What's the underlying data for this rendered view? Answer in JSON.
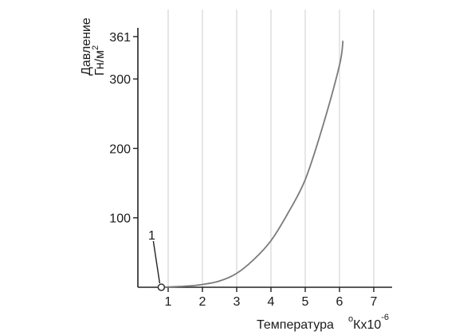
{
  "chart_data": {
    "type": "line",
    "xlabel_main": "Температура",
    "xlabel_unit": "°Кх10",
    "xlabel_unit_deg": "o",
    "xlabel_unit_body": "Кх10",
    "xlabel_exponent": "-6",
    "ylabel_line1": "Давление",
    "ylabel_line2_base": "Гн/м",
    "ylabel_line2_sup": "2",
    "xlim": [
      0,
      7.5
    ],
    "ylim": [
      0,
      375
    ],
    "x_ticks": [
      1,
      2,
      3,
      4,
      5,
      6,
      7
    ],
    "x_tick_labels": [
      "1",
      "2",
      "3",
      "4",
      "5",
      "6",
      "7"
    ],
    "y_ticks": [
      100,
      200,
      300,
      361
    ],
    "y_tick_labels": [
      "100",
      "200",
      "300",
      "361"
    ],
    "grid_x": true,
    "grid_y": false,
    "series": [
      {
        "color": "#7a7a7a",
        "x": [
          0.8,
          1.0,
          1.5,
          2.0,
          2.5,
          3.0,
          3.5,
          4.0,
          4.5,
          5.0,
          5.5,
          6.0,
          6.1
        ],
        "y": [
          0,
          0.3,
          1.5,
          4,
          9,
          20,
          40,
          67,
          107,
          155,
          230,
          320,
          355
        ]
      }
    ],
    "annotations": [
      {
        "label": "1",
        "x": 0.8,
        "y": 0,
        "marker": "open-circle"
      }
    ]
  }
}
